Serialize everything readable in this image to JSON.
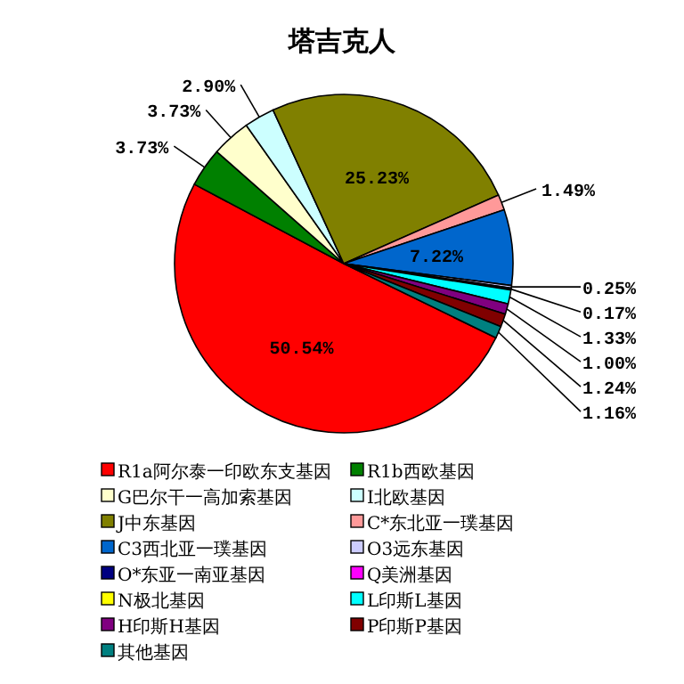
{
  "chart_data": {
    "type": "pie",
    "title": "塔吉克人",
    "categories": [
      "R1a阿尔泰一印欧东支基因",
      "R1b西欧基因",
      "G巴尔干一高加索基因",
      "I北欧基因",
      "J中东基因",
      "C*东北亚一璞基因",
      "C3西北亚一璞基因",
      "O3远东基因",
      "O*东亚一南亚基因",
      "Q美洲基因",
      "N极北基因",
      "L印斯L基因",
      "H印斯H基因",
      "P印斯P基因",
      "其他基因"
    ],
    "values": [
      50.54,
      3.73,
      3.73,
      2.9,
      25.23,
      1.49,
      7.22,
      0.25,
      0.17,
      0,
      0,
      1.33,
      1.0,
      1.24,
      1.16
    ],
    "value_labels": [
      "50.54%",
      "3.73%",
      "3.73%",
      "2.90%",
      "25.23%",
      "1.49%",
      "7.22%",
      "0.25%",
      "0.17%",
      null,
      null,
      "1.33%",
      "1.00%",
      "1.24%",
      "1.16%"
    ],
    "colors": [
      "#ff0000",
      "#008000",
      "#ffffcc",
      "#ccffff",
      "#808000",
      "#ff9999",
      "#0066cc",
      "#ccccff",
      "#000080",
      "#ff00ff",
      "#ffff00",
      "#00ffff",
      "#800080",
      "#800000",
      "#008080"
    ],
    "legend": "bottom"
  }
}
